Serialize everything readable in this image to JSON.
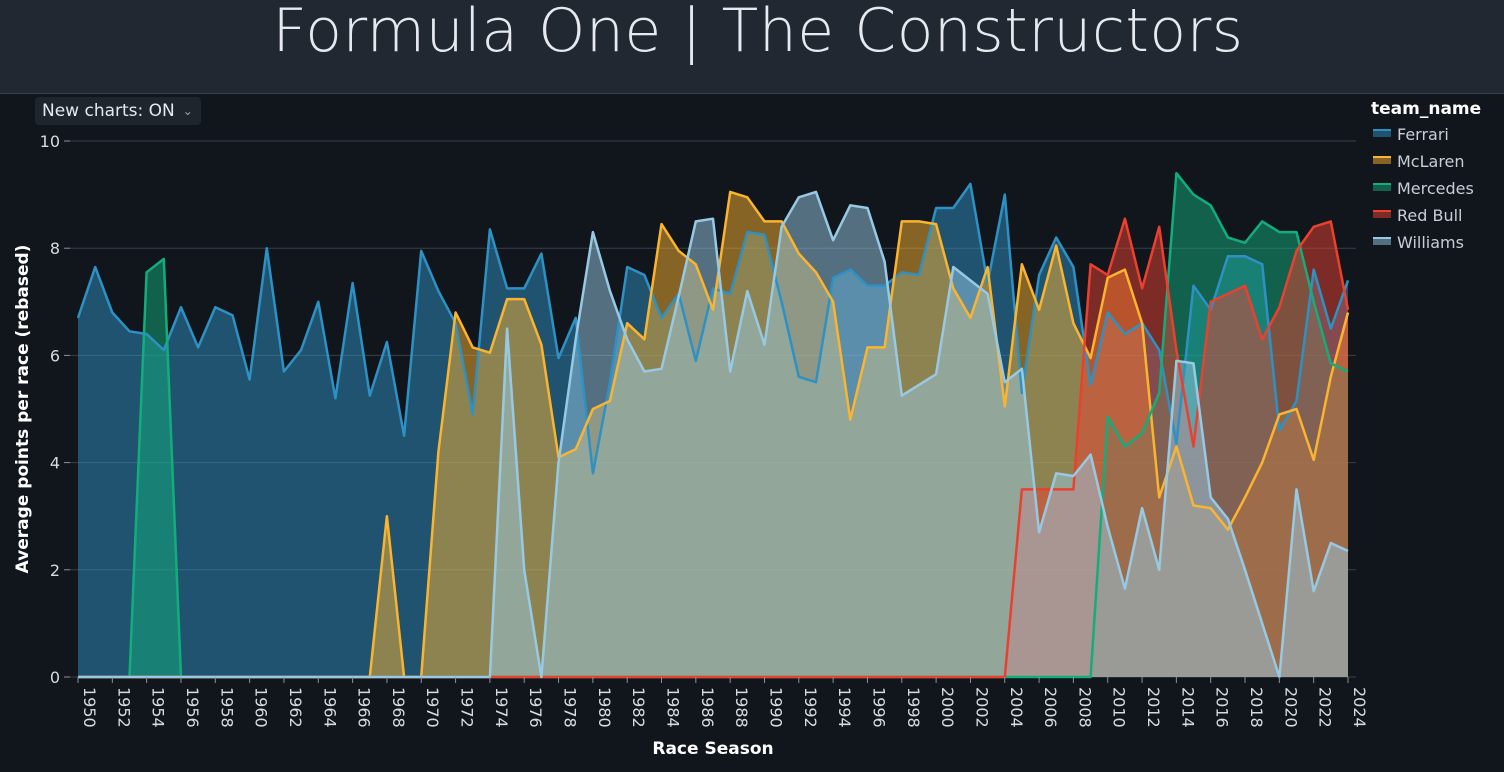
{
  "page": {
    "title": "Formula One | The Constructors"
  },
  "controls": {
    "new_charts_label": "New charts: ON"
  },
  "chart_data": {
    "type": "area",
    "xlabel": "Race Season",
    "ylabel": "Average points per race (rebased)",
    "ylim": [
      0,
      10
    ],
    "yticks": [
      0,
      2,
      4,
      6,
      8,
      10
    ],
    "xlim": [
      1950,
      2024
    ],
    "xticks": [
      1950,
      1952,
      1954,
      1956,
      1958,
      1960,
      1962,
      1964,
      1966,
      1968,
      1970,
      1972,
      1974,
      1976,
      1978,
      1980,
      1982,
      1984,
      1986,
      1988,
      1990,
      1992,
      1994,
      1996,
      1998,
      2000,
      2002,
      2004,
      2006,
      2008,
      2010,
      2012,
      2014,
      2016,
      2018,
      2020,
      2022,
      2024
    ],
    "grid": true,
    "legend_title": "team_name",
    "legend_position": "right",
    "x": [
      1950,
      1951,
      1952,
      1953,
      1954,
      1955,
      1956,
      1957,
      1958,
      1959,
      1960,
      1961,
      1962,
      1963,
      1964,
      1965,
      1966,
      1967,
      1968,
      1969,
      1970,
      1971,
      1972,
      1973,
      1974,
      1975,
      1976,
      1977,
      1978,
      1979,
      1980,
      1981,
      1982,
      1983,
      1984,
      1985,
      1986,
      1987,
      1988,
      1989,
      1990,
      1991,
      1992,
      1993,
      1994,
      1995,
      1996,
      1997,
      1998,
      1999,
      2000,
      2001,
      2002,
      2003,
      2004,
      2005,
      2006,
      2007,
      2008,
      2009,
      2010,
      2011,
      2012,
      2013,
      2014,
      2015,
      2016,
      2017,
      2018,
      2019,
      2020,
      2021,
      2022,
      2023,
      2024
    ],
    "series": [
      {
        "name": "Ferrari",
        "color": "#2e91c4",
        "values": [
          6.7,
          7.65,
          6.8,
          6.45,
          6.4,
          6.1,
          6.9,
          6.15,
          6.9,
          6.75,
          5.55,
          8.0,
          5.7,
          6.1,
          7.0,
          5.2,
          7.35,
          5.25,
          6.25,
          4.5,
          7.95,
          7.2,
          6.6,
          4.9,
          8.35,
          7.25,
          7.25,
          7.9,
          5.95,
          6.7,
          3.8,
          5.5,
          7.65,
          7.5,
          6.7,
          7.15,
          5.9,
          7.25,
          7.15,
          8.3,
          8.25,
          7.0,
          5.6,
          5.5,
          7.45,
          7.6,
          7.3,
          7.3,
          7.55,
          7.5,
          8.75,
          8.75,
          9.2,
          7.35,
          9.0,
          5.3,
          7.5,
          8.2,
          7.65,
          5.45,
          6.8,
          6.4,
          6.6,
          6.1,
          4.35,
          7.3,
          6.85,
          7.85,
          7.85,
          7.7,
          4.6,
          5.15,
          7.6,
          6.5,
          7.4
        ]
      },
      {
        "name": "McLaren",
        "color": "#fbb42f",
        "values": [
          0,
          0,
          0,
          0,
          0,
          0,
          0,
          0,
          0,
          0,
          0,
          0,
          0,
          0,
          0,
          0,
          0,
          0,
          3.0,
          0,
          0,
          4.2,
          6.8,
          6.15,
          6.05,
          7.05,
          7.05,
          6.2,
          4.1,
          4.25,
          5.0,
          5.15,
          6.6,
          6.3,
          8.45,
          7.95,
          7.7,
          6.85,
          9.05,
          8.95,
          8.5,
          8.5,
          7.9,
          7.55,
          7.0,
          4.8,
          6.15,
          6.15,
          8.5,
          8.5,
          8.45,
          7.25,
          6.7,
          7.65,
          5.05,
          7.7,
          6.85,
          8.05,
          6.6,
          5.95,
          7.45,
          7.6,
          6.6,
          3.35,
          4.3,
          3.2,
          3.15,
          2.75,
          3.35,
          4.0,
          4.9,
          5.0,
          4.05,
          5.6,
          6.8
        ]
      },
      {
        "name": "Mercedes",
        "color": "#13ad7c",
        "values": [
          0,
          0,
          0,
          0,
          7.55,
          7.8,
          0,
          0,
          0,
          0,
          0,
          0,
          0,
          0,
          0,
          0,
          0,
          0,
          0,
          0,
          0,
          0,
          0,
          0,
          0,
          0,
          0,
          0,
          0,
          0,
          0,
          0,
          0,
          0,
          0,
          0,
          0,
          0,
          0,
          0,
          0,
          0,
          0,
          0,
          0,
          0,
          0,
          0,
          0,
          0,
          0,
          0,
          0,
          0,
          0,
          0,
          0,
          0,
          0,
          0,
          4.85,
          4.3,
          4.55,
          5.3,
          9.4,
          9.0,
          8.8,
          8.2,
          8.1,
          8.5,
          8.3,
          8.3,
          7.0,
          5.85,
          5.7
        ]
      },
      {
        "name": "Red Bull",
        "color": "#ea412f",
        "values": [
          0,
          0,
          0,
          0,
          0,
          0,
          0,
          0,
          0,
          0,
          0,
          0,
          0,
          0,
          0,
          0,
          0,
          0,
          0,
          0,
          0,
          0,
          0,
          0,
          0,
          0,
          0,
          0,
          0,
          0,
          0,
          0,
          0,
          0,
          0,
          0,
          0,
          0,
          0,
          0,
          0,
          0,
          0,
          0,
          0,
          0,
          0,
          0,
          0,
          0,
          0,
          0,
          0,
          0,
          0,
          3.5,
          3.5,
          3.5,
          3.5,
          7.7,
          7.5,
          8.55,
          7.25,
          8.4,
          6.1,
          4.3,
          7.0,
          7.15,
          7.3,
          6.3,
          6.9,
          7.95,
          8.4,
          8.5,
          6.85
        ]
      },
      {
        "name": "Williams",
        "color": "#98c9e3",
        "values": [
          0,
          0,
          0,
          0,
          0,
          0,
          0,
          0,
          0,
          0,
          0,
          0,
          0,
          0,
          0,
          0,
          0,
          0,
          0,
          0,
          0,
          0,
          0,
          0,
          0,
          6.5,
          2.0,
          0,
          4.0,
          6.3,
          8.3,
          7.2,
          6.3,
          5.7,
          5.75,
          7.1,
          8.5,
          8.55,
          5.7,
          7.2,
          6.2,
          8.4,
          8.95,
          9.05,
          8.15,
          8.8,
          8.75,
          7.75,
          5.25,
          5.45,
          5.65,
          7.65,
          7.4,
          7.15,
          5.5,
          5.75,
          2.7,
          3.8,
          3.75,
          4.15,
          2.8,
          1.65,
          3.15,
          2.0,
          5.9,
          5.85,
          3.35,
          2.95,
          2.0,
          1.0,
          0.0,
          3.5,
          1.6,
          2.5,
          2.35
        ]
      }
    ]
  }
}
